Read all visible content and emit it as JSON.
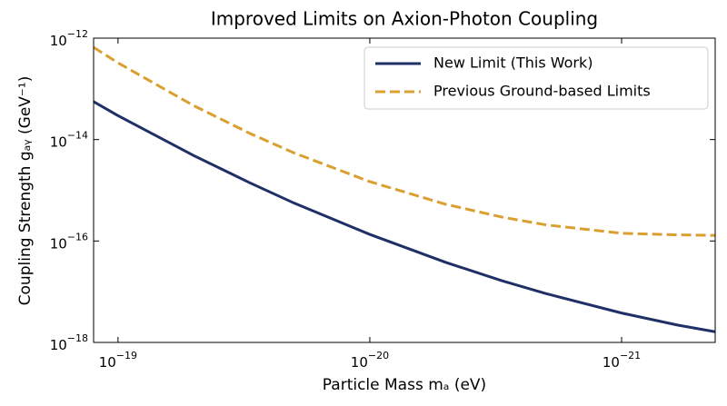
{
  "chart_data": {
    "type": "line",
    "title": "Improved Limits on Axion-Photon Coupling",
    "xlabel": "Particle Mass mₐ (eV)",
    "ylabel": "Coupling Strength gₐᵧ (GeV⁻¹)",
    "x": [
      1.25e-19,
      1e-19,
      5e-20,
      3e-20,
      2e-20,
      1e-20,
      5e-21,
      3e-21,
      2e-21,
      1e-21,
      6e-22,
      4.25e-22
    ],
    "series": [
      {
        "name": "New Limit (This Work)",
        "color": "#1f3066",
        "linestyle": "solid",
        "values": [
          5.6e-14,
          2.96e-14,
          4.83e-15,
          1.41e-15,
          5.6e-16,
          1.35e-16,
          3.8e-17,
          1.66e-17,
          9.2e-18,
          3.8e-18,
          2.2e-18,
          1.62e-18
        ]
      },
      {
        "name": "Previous Ground-based Limits",
        "color": "#d9a030",
        "linestyle": "dashed",
        "values": [
          6.6e-13,
          3.26e-13,
          4.66e-14,
          1.33e-14,
          5.46e-15,
          1.48e-15,
          5.3e-16,
          2.97e-16,
          2.08e-16,
          1.42e-16,
          1.32e-16,
          1.29e-16
        ]
      }
    ],
    "xscale": "log",
    "yscale": "log",
    "xlim": [
      1.25e-19,
      4.25e-22
    ],
    "ylim": [
      1e-18,
      1e-12
    ],
    "xticks": [
      {
        "value": 1e-19,
        "label": "10−19"
      },
      {
        "value": 1e-20,
        "label": "10−20"
      },
      {
        "value": 1e-21,
        "label": "10−21"
      }
    ],
    "yticks": [
      {
        "value": 1e-18,
        "label": "10−18"
      },
      {
        "value": 1e-16,
        "label": "10−16"
      },
      {
        "value": 1e-14,
        "label": "10−14"
      },
      {
        "value": 1e-12,
        "label": "10−12"
      }
    ],
    "grid": false,
    "legend": "upper right"
  }
}
